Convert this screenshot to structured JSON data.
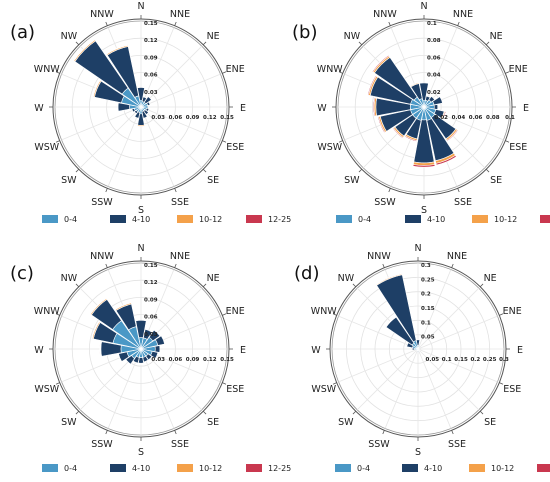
{
  "figure": {
    "directions": [
      "N",
      "NNE",
      "NE",
      "ENE",
      "E",
      "ESE",
      "SE",
      "SSE",
      "S",
      "SSW",
      "SW",
      "WSW",
      "W",
      "WNW",
      "NW",
      "NNW"
    ],
    "bins": [
      {
        "label": "0-4",
        "color": "#4a98c6"
      },
      {
        "label": "4-10",
        "color": "#1e3f66"
      },
      {
        "label": "10-12",
        "color": "#f4a14a"
      },
      {
        "label": "12-25",
        "color": "#c9384f"
      }
    ]
  },
  "chart_data": [
    {
      "type": "rose",
      "panel_label": "(a)",
      "rmax": 0.15,
      "ticks": [
        0.03,
        0.06,
        0.09,
        0.12,
        0.15
      ],
      "tick_labels": [
        "0.03",
        "0.06",
        "0.09",
        "0.12",
        "0.15"
      ],
      "series": [
        {
          "name": "0-4",
          "values": [
            0.012,
            0.01,
            0.01,
            0.012,
            0.012,
            0.01,
            0.008,
            0.008,
            0.012,
            0.01,
            0.01,
            0.012,
            0.02,
            0.035,
            0.04,
            0.02
          ]
        },
        {
          "name": "4-10",
          "values": [
            0.022,
            0.008,
            0.012,
            0.004,
            0.0,
            0.004,
            0.008,
            0.012,
            0.02,
            0.01,
            0.004,
            0.004,
            0.02,
            0.048,
            0.1,
            0.088
          ]
        },
        {
          "name": "10-12",
          "values": [
            0.0,
            0.0,
            0.0,
            0.0,
            0.0,
            0.0,
            0.0,
            0.0,
            0.002,
            0.0,
            0.0,
            0.0,
            0.0,
            0.002,
            0.002,
            0.002
          ]
        },
        {
          "name": "12-25",
          "values": [
            0.0,
            0.0,
            0.0,
            0.0,
            0.0,
            0.0,
            0.0,
            0.0,
            0.001,
            0.0,
            0.0,
            0.0,
            0.0,
            0.001,
            0.001,
            0.001
          ]
        }
      ]
    },
    {
      "type": "rose",
      "panel_label": "(b)",
      "rmax": 0.1,
      "ticks": [
        0.02,
        0.04,
        0.06,
        0.08,
        0.1
      ],
      "tick_labels": [
        "0.02",
        "0.04",
        "0.06",
        "0.08",
        "0.1"
      ],
      "series": [
        {
          "name": "0-4",
          "values": [
            0.008,
            0.008,
            0.01,
            0.012,
            0.012,
            0.014,
            0.015,
            0.016,
            0.015,
            0.016,
            0.016,
            0.016,
            0.016,
            0.016,
            0.014,
            0.01
          ]
        },
        {
          "name": "4-10",
          "values": [
            0.02,
            0.005,
            0.005,
            0.01,
            0.004,
            0.01,
            0.03,
            0.048,
            0.05,
            0.022,
            0.025,
            0.036,
            0.04,
            0.048,
            0.056,
            0.018
          ]
        },
        {
          "name": "10-12",
          "values": [
            0.0,
            0.0,
            0.0,
            0.0,
            0.0,
            0.001,
            0.002,
            0.003,
            0.003,
            0.002,
            0.002,
            0.002,
            0.002,
            0.002,
            0.002,
            0.001
          ]
        },
        {
          "name": "12-25",
          "values": [
            0.0,
            0.0,
            0.0,
            0.0,
            0.0,
            0.001,
            0.001,
            0.002,
            0.002,
            0.001,
            0.001,
            0.001,
            0.001,
            0.001,
            0.001,
            0.0
          ]
        }
      ]
    },
    {
      "type": "rose",
      "panel_label": "(c)",
      "rmax": 0.15,
      "ticks": [
        0.03,
        0.06,
        0.09,
        0.12,
        0.15
      ],
      "tick_labels": [
        "0.03",
        "0.06",
        "0.09",
        "0.12",
        "0.15"
      ],
      "series": [
        {
          "name": "0-4",
          "values": [
            0.02,
            0.02,
            0.025,
            0.03,
            0.025,
            0.02,
            0.015,
            0.015,
            0.015,
            0.015,
            0.02,
            0.025,
            0.035,
            0.05,
            0.06,
            0.04
          ]
        },
        {
          "name": "4-10",
          "values": [
            0.03,
            0.015,
            0.015,
            0.012,
            0.008,
            0.01,
            0.008,
            0.008,
            0.01,
            0.01,
            0.012,
            0.015,
            0.035,
            0.035,
            0.045,
            0.04
          ]
        },
        {
          "name": "10-12",
          "values": [
            0.0,
            0.0,
            0.0,
            0.0,
            0.0,
            0.0,
            0.0,
            0.0,
            0.001,
            0.0,
            0.0,
            0.0,
            0.001,
            0.002,
            0.002,
            0.002
          ]
        },
        {
          "name": "12-25",
          "values": [
            0.0,
            0.0,
            0.0,
            0.0,
            0.0,
            0.0,
            0.0,
            0.0,
            0.001,
            0.0,
            0.0,
            0.0,
            0.001,
            0.001,
            0.001,
            0.001
          ]
        }
      ]
    },
    {
      "type": "rose",
      "panel_label": "(d)",
      "rmax": 0.3,
      "ticks": [
        0.05,
        0.1,
        0.15,
        0.2,
        0.25,
        0.3
      ],
      "tick_labels": [
        "0.05",
        "0.1",
        "0.15",
        "0.2",
        "0.25",
        "0.3"
      ],
      "series": [
        {
          "name": "0-4",
          "values": [
            0.012,
            0.006,
            0.004,
            0.004,
            0.004,
            0.004,
            0.004,
            0.006,
            0.008,
            0.006,
            0.006,
            0.008,
            0.012,
            0.02,
            0.025,
            0.03
          ]
        },
        {
          "name": "4-10",
          "values": [
            0.02,
            0.0,
            0.0,
            0.0,
            0.0,
            0.0,
            0.004,
            0.004,
            0.004,
            0.0,
            0.0,
            0.0,
            0.008,
            0.02,
            0.11,
            0.235
          ]
        },
        {
          "name": "10-12",
          "values": [
            0.0,
            0.0,
            0.0,
            0.0,
            0.0,
            0.0,
            0.0,
            0.0,
            0.0,
            0.0,
            0.0,
            0.0,
            0.0,
            0.0,
            0.002,
            0.003
          ]
        },
        {
          "name": "12-25",
          "values": [
            0.0,
            0.0,
            0.0,
            0.0,
            0.0,
            0.0,
            0.0,
            0.0,
            0.0,
            0.0,
            0.0,
            0.0,
            0.0,
            0.0,
            0.001,
            0.002
          ]
        }
      ]
    }
  ]
}
